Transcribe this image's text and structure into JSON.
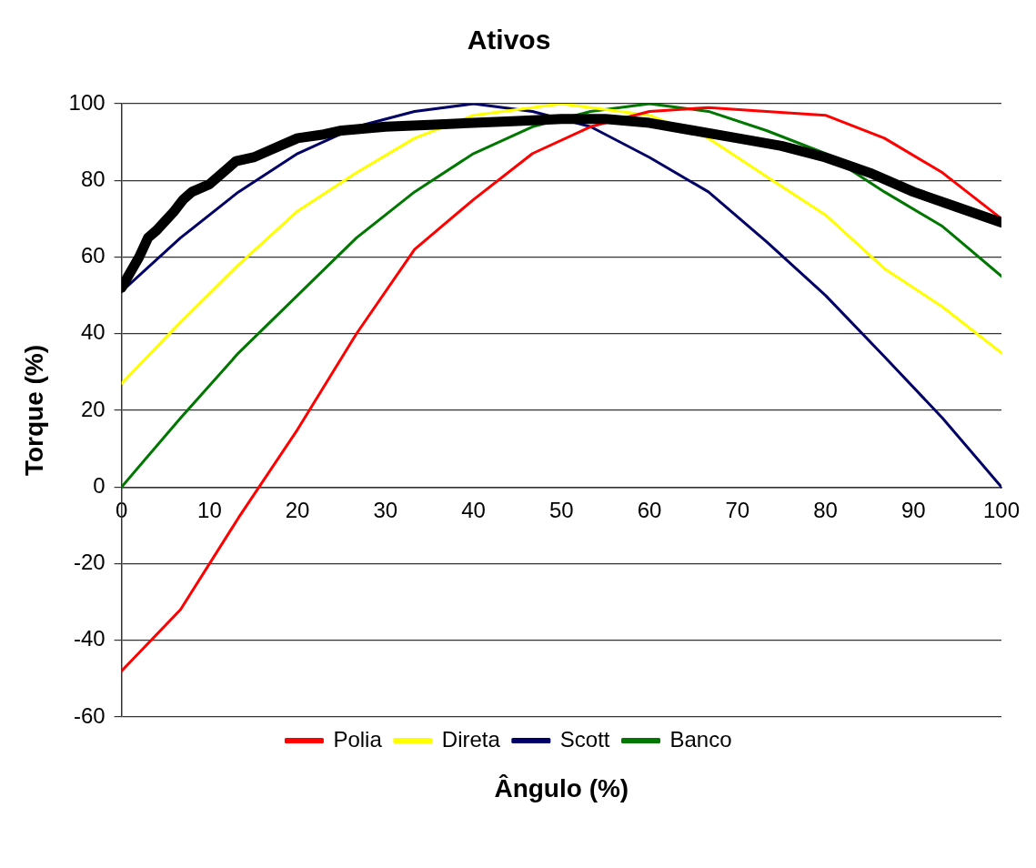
{
  "chart_data": {
    "type": "line",
    "title": "Ativos",
    "xlabel": "Ângulo (%)",
    "ylabel": "Torque (%)",
    "xlim": [
      0,
      100
    ],
    "xticks": [
      0,
      10,
      20,
      30,
      40,
      50,
      60,
      70,
      80,
      90,
      100
    ],
    "ylim": [
      -60,
      100
    ],
    "yticks": [
      -60,
      -40,
      -20,
      0,
      20,
      40,
      60,
      80,
      100
    ],
    "grid": "y",
    "legend": "bottom",
    "line_style": "solid",
    "series": [
      {
        "name": "Polia",
        "color": "#ff0000",
        "x": [
          0,
          6.7,
          13.3,
          20,
          26.7,
          33.3,
          40,
          46.7,
          53.3,
          60,
          66.7,
          73.3,
          80,
          86.7,
          93.3,
          100
        ],
        "values": [
          -48,
          -32,
          -8,
          15,
          40,
          62,
          75,
          87,
          94,
          98,
          99,
          98,
          97,
          91,
          82,
          70
        ]
      },
      {
        "name": "Direta",
        "color": "#ffff00",
        "x": [
          0,
          6.7,
          13.3,
          20,
          26.7,
          33.3,
          40,
          46.7,
          50,
          53.3,
          60,
          66.7,
          73.3,
          80,
          86.7,
          93.3,
          100
        ],
        "values": [
          27,
          43,
          58,
          72,
          82,
          91,
          97,
          99,
          100,
          99,
          97,
          91,
          81,
          71,
          57,
          47,
          35
        ]
      },
      {
        "name": "Scott",
        "color": "#000066",
        "x": [
          0,
          6.7,
          13.3,
          20,
          26.7,
          33.3,
          40,
          46.7,
          53.3,
          60,
          66.7,
          73.3,
          80,
          86.7,
          93.3,
          100
        ],
        "values": [
          51,
          65,
          77,
          87,
          94,
          98,
          100,
          98,
          94,
          86,
          77,
          64,
          50,
          34,
          18,
          0
        ]
      },
      {
        "name": "Banco",
        "color": "#007700",
        "x": [
          0,
          6.7,
          13.3,
          20,
          26.7,
          33.3,
          40,
          46.7,
          53.3,
          60,
          66.7,
          73.3,
          80,
          86.7,
          93.3,
          100
        ],
        "values": [
          0,
          18,
          35,
          50,
          65,
          77,
          87,
          94,
          98,
          100,
          98,
          93,
          87,
          77,
          68,
          55
        ]
      },
      {
        "color": "#000000",
        "x": [
          0,
          1,
          2,
          3,
          4,
          6,
          7,
          8,
          10,
          12,
          13,
          15,
          17,
          20,
          23,
          25,
          30,
          35,
          40,
          45,
          50,
          55,
          60,
          65,
          70,
          75,
          80,
          85,
          90,
          95,
          100
        ],
        "values": [
          52,
          56,
          60,
          65,
          67,
          72,
          75,
          77,
          79,
          83,
          85,
          86,
          88,
          91,
          92,
          93,
          94,
          94.5,
          95,
          95.5,
          96,
          96,
          95,
          93,
          91,
          89,
          86,
          82,
          77,
          73,
          69
        ]
      }
    ]
  }
}
